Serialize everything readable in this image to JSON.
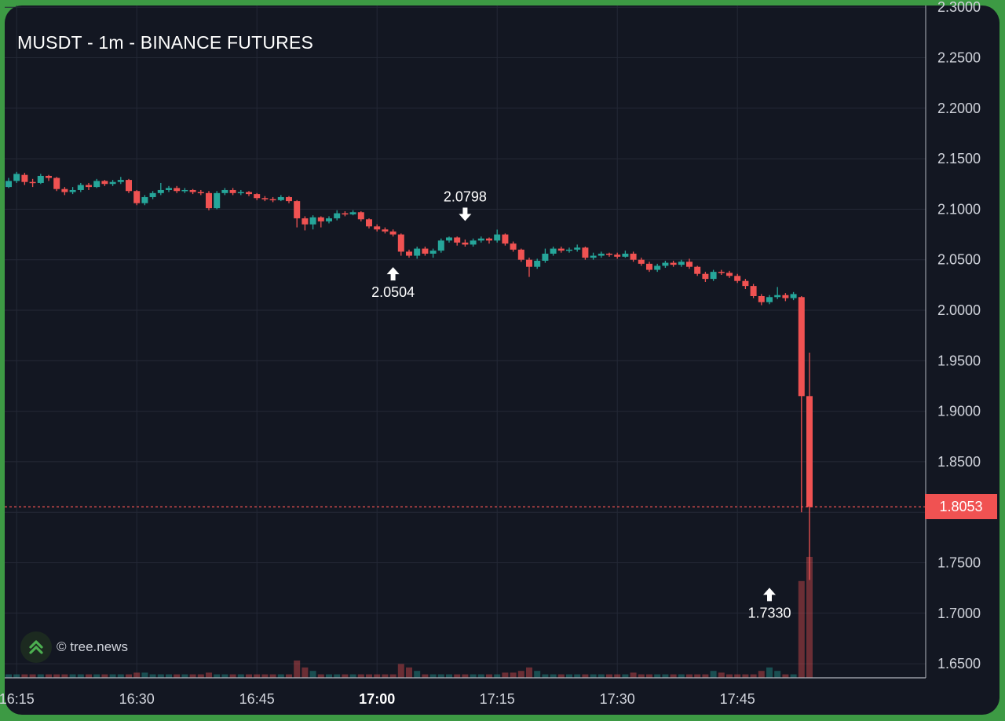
{
  "header": {
    "title": "MUSDT - 1m - BINANCE FUTURES"
  },
  "watermark": {
    "text": "© tree.news",
    "icon": "double-chevron-up-icon"
  },
  "last_price": {
    "label": "1.8053",
    "value": 1.8053
  },
  "annotations": [
    {
      "label": "2.0798",
      "arrow": "down",
      "time": "17:11",
      "price": 2.0798
    },
    {
      "label": "2.0504",
      "arrow": "up",
      "time": "17:02",
      "price": 2.0504
    },
    {
      "label": "1.7330",
      "arrow": "up",
      "time": "17:49",
      "price": 1.733
    }
  ],
  "colors": {
    "up": "#26a69a",
    "down": "#f05252",
    "background": "#131722",
    "grid": "#242936",
    "text": "#d1d4dc",
    "frame": "#3d9a44"
  },
  "chart_data": {
    "type": "candlestick",
    "title": "MUSDT - 1m - BINANCE FUTURES",
    "interval": "1m",
    "x_ticks": [
      "16:15",
      "16:30",
      "16:45",
      "17:00",
      "17:15",
      "17:30",
      "17:45"
    ],
    "x_tick_bold": [
      "17:00"
    ],
    "y_ticks": [
      "2.3000",
      "2.2500",
      "2.2000",
      "2.1500",
      "2.1000",
      "2.0500",
      "2.0000",
      "1.9500",
      "1.9000",
      "1.8500",
      "1.8000",
      "1.7500",
      "1.7000",
      "1.6500"
    ],
    "ylim": [
      1.63,
      2.3
    ],
    "grid": true,
    "closes": [
      2.128,
      2.135,
      2.127,
      2.126,
      2.133,
      2.131,
      2.12,
      2.117,
      2.119,
      2.124,
      2.122,
      2.128,
      2.125,
      2.127,
      2.129,
      2.118,
      2.106,
      2.112,
      2.116,
      2.119,
      2.121,
      2.118,
      2.119,
      2.117,
      2.116,
      2.101,
      2.116,
      2.119,
      2.116,
      2.117,
      2.115,
      2.111,
      2.11,
      2.109,
      2.112,
      2.108,
      2.091,
      2.085,
      2.092,
      2.088,
      2.091,
      2.096,
      2.095,
      2.097,
      2.09,
      2.083,
      2.08,
      2.078,
      2.075,
      2.058,
      2.054,
      2.061,
      2.056,
      2.059,
      2.069,
      2.072,
      2.067,
      2.065,
      2.069,
      2.071,
      2.069,
      2.075,
      2.066,
      2.06,
      2.05,
      2.043,
      2.049,
      2.056,
      2.061,
      2.059,
      2.06,
      2.062,
      2.052,
      2.054,
      2.056,
      2.055,
      2.053,
      2.056,
      2.05,
      2.046,
      2.04,
      2.044,
      2.047,
      2.045,
      2.048,
      2.043,
      2.036,
      2.031,
      2.038,
      2.037,
      2.034,
      2.029,
      2.024,
      2.014,
      2.008,
      2.013,
      2.015,
      2.012,
      2.016,
      1.915,
      1.8053
    ],
    "series": [
      {
        "name": "",
        "type": "candlestick",
        "ohlc_note": "open/high/low/close in price units",
        "candles": [
          [
            2.122,
            2.131,
            2.121,
            2.128
          ],
          [
            2.128,
            2.137,
            2.126,
            2.135
          ],
          [
            2.134,
            2.136,
            2.124,
            2.127
          ],
          [
            2.127,
            2.13,
            2.122,
            2.126
          ],
          [
            2.126,
            2.135,
            2.125,
            2.133
          ],
          [
            2.133,
            2.134,
            2.128,
            2.131
          ],
          [
            2.131,
            2.132,
            2.118,
            2.12
          ],
          [
            2.12,
            2.122,
            2.114,
            2.117
          ],
          [
            2.117,
            2.122,
            2.115,
            2.119
          ],
          [
            2.119,
            2.126,
            2.117,
            2.124
          ],
          [
            2.124,
            2.126,
            2.119,
            2.122
          ],
          [
            2.122,
            2.13,
            2.121,
            2.128
          ],
          [
            2.128,
            2.129,
            2.123,
            2.125
          ],
          [
            2.125,
            2.129,
            2.123,
            2.127
          ],
          [
            2.127,
            2.132,
            2.125,
            2.129
          ],
          [
            2.129,
            2.13,
            2.116,
            2.118
          ],
          [
            2.118,
            2.119,
            2.104,
            2.106
          ],
          [
            2.106,
            2.114,
            2.104,
            2.112
          ],
          [
            2.112,
            2.118,
            2.11,
            2.116
          ],
          [
            2.116,
            2.126,
            2.114,
            2.119
          ],
          [
            2.119,
            2.123,
            2.117,
            2.121
          ],
          [
            2.121,
            2.123,
            2.116,
            2.118
          ],
          [
            2.118,
            2.121,
            2.116,
            2.119
          ],
          [
            2.119,
            2.12,
            2.115,
            2.117
          ],
          [
            2.117,
            2.119,
            2.114,
            2.116
          ],
          [
            2.116,
            2.118,
            2.099,
            2.101
          ],
          [
            2.101,
            2.118,
            2.1,
            2.116
          ],
          [
            2.116,
            2.121,
            2.114,
            2.119
          ],
          [
            2.119,
            2.121,
            2.114,
            2.116
          ],
          [
            2.116,
            2.119,
            2.114,
            2.117
          ],
          [
            2.117,
            2.118,
            2.113,
            2.115
          ],
          [
            2.115,
            2.116,
            2.109,
            2.111
          ],
          [
            2.111,
            2.113,
            2.108,
            2.11
          ],
          [
            2.11,
            2.112,
            2.107,
            2.109
          ],
          [
            2.109,
            2.114,
            2.108,
            2.112
          ],
          [
            2.112,
            2.113,
            2.106,
            2.108
          ],
          [
            2.108,
            2.109,
            2.082,
            2.091
          ],
          [
            2.091,
            2.093,
            2.079,
            2.085
          ],
          [
            2.085,
            2.094,
            2.08,
            2.092
          ],
          [
            2.092,
            2.093,
            2.082,
            2.088
          ],
          [
            2.088,
            2.093,
            2.086,
            2.091
          ],
          [
            2.091,
            2.099,
            2.089,
            2.096
          ],
          [
            2.096,
            2.098,
            2.093,
            2.095
          ],
          [
            2.095,
            2.099,
            2.094,
            2.097
          ],
          [
            2.097,
            2.098,
            2.088,
            2.09
          ],
          [
            2.09,
            2.091,
            2.081,
            2.083
          ],
          [
            2.083,
            2.085,
            2.078,
            2.08
          ],
          [
            2.08,
            2.082,
            2.076,
            2.078
          ],
          [
            2.078,
            2.08,
            2.073,
            2.075
          ],
          [
            2.075,
            2.076,
            2.054,
            2.058
          ],
          [
            2.058,
            2.06,
            2.052,
            2.054
          ],
          [
            2.054,
            2.063,
            2.051,
            2.061
          ],
          [
            2.061,
            2.063,
            2.054,
            2.056
          ],
          [
            2.056,
            2.061,
            2.052,
            2.059
          ],
          [
            2.059,
            2.071,
            2.057,
            2.069
          ],
          [
            2.069,
            2.073,
            2.067,
            2.072
          ],
          [
            2.072,
            2.073,
            2.064,
            2.067
          ],
          [
            2.067,
            2.07,
            2.063,
            2.065
          ],
          [
            2.065,
            2.071,
            2.063,
            2.069
          ],
          [
            2.069,
            2.073,
            2.067,
            2.071
          ],
          [
            2.071,
            2.072,
            2.066,
            2.069
          ],
          [
            2.069,
            2.0798,
            2.067,
            2.075
          ],
          [
            2.075,
            2.076,
            2.064,
            2.066
          ],
          [
            2.066,
            2.068,
            2.058,
            2.06
          ],
          [
            2.06,
            2.061,
            2.048,
            2.05
          ],
          [
            2.05,
            2.052,
            2.033,
            2.043
          ],
          [
            2.043,
            2.051,
            2.041,
            2.049
          ],
          [
            2.049,
            2.061,
            2.047,
            2.056
          ],
          [
            2.056,
            2.063,
            2.054,
            2.061
          ],
          [
            2.061,
            2.063,
            2.057,
            2.059
          ],
          [
            2.059,
            2.062,
            2.057,
            2.06
          ],
          [
            2.06,
            2.065,
            2.058,
            2.062
          ],
          [
            2.062,
            2.063,
            2.05,
            2.052
          ],
          [
            2.052,
            2.057,
            2.05,
            2.054
          ],
          [
            2.054,
            2.058,
            2.052,
            2.056
          ],
          [
            2.056,
            2.057,
            2.053,
            2.055
          ],
          [
            2.055,
            2.057,
            2.051,
            2.053
          ],
          [
            2.053,
            2.059,
            2.052,
            2.056
          ],
          [
            2.056,
            2.058,
            2.048,
            2.05
          ],
          [
            2.05,
            2.052,
            2.044,
            2.046
          ],
          [
            2.046,
            2.048,
            2.038,
            2.04
          ],
          [
            2.04,
            2.046,
            2.038,
            2.044
          ],
          [
            2.044,
            2.049,
            2.042,
            2.047
          ],
          [
            2.047,
            2.049,
            2.043,
            2.045
          ],
          [
            2.045,
            2.05,
            2.043,
            2.048
          ],
          [
            2.048,
            2.051,
            2.041,
            2.043
          ],
          [
            2.043,
            2.044,
            2.034,
            2.036
          ],
          [
            2.036,
            2.038,
            2.028,
            2.031
          ],
          [
            2.031,
            2.04,
            2.029,
            2.038
          ],
          [
            2.038,
            2.04,
            2.035,
            2.037
          ],
          [
            2.037,
            2.039,
            2.032,
            2.034
          ],
          [
            2.034,
            2.036,
            2.027,
            2.029
          ],
          [
            2.029,
            2.031,
            2.021,
            2.024
          ],
          [
            2.024,
            2.026,
            2.012,
            2.014
          ],
          [
            2.014,
            2.016,
            2.005,
            2.008
          ],
          [
            2.008,
            2.015,
            2.006,
            2.013
          ],
          [
            2.013,
            2.023,
            2.011,
            2.015
          ],
          [
            2.015,
            2.017,
            2.009,
            2.012
          ],
          [
            2.012,
            2.018,
            2.01,
            2.016
          ],
          [
            2.013,
            2.014,
            1.8,
            1.915
          ],
          [
            1.915,
            1.958,
            1.733,
            1.8053
          ]
        ]
      }
    ],
    "volume": [
      1,
      1,
      1,
      1,
      1,
      1,
      1,
      1,
      1,
      1,
      1,
      1,
      1,
      1,
      1,
      1,
      1.5,
      1.5,
      1,
      1,
      1,
      1,
      1,
      1,
      1,
      1.5,
      1,
      1,
      1,
      1,
      1,
      1,
      1,
      1,
      1,
      1,
      5,
      3,
      2,
      1,
      1,
      1,
      1,
      1,
      1,
      1,
      1,
      1,
      1,
      4,
      3,
      2,
      1,
      1,
      1,
      1,
      1,
      1,
      1,
      1,
      1,
      1,
      1.5,
      1.5,
      2,
      3,
      2,
      1,
      1,
      1,
      1,
      1,
      1,
      1,
      1,
      1,
      1,
      1,
      1.5,
      1,
      1,
      1,
      1,
      1,
      1,
      1,
      1,
      1,
      2,
      1.5,
      1,
      1,
      1,
      1,
      2,
      3,
      2,
      1,
      1,
      28,
      35
    ]
  }
}
